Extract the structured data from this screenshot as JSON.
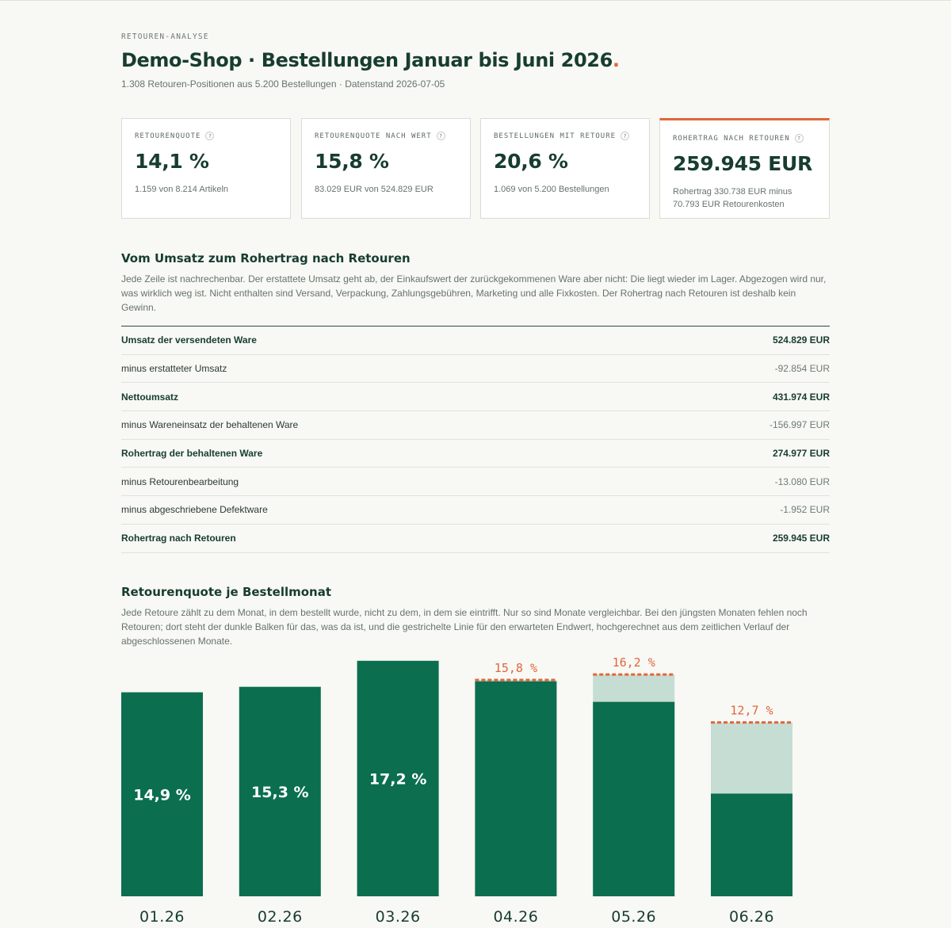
{
  "header": {
    "eyebrow": "RETOUREN-ANALYSE",
    "title": "Demo-Shop · Bestellungen Januar bis Juni 2026",
    "title_dot": ".",
    "subtitle": "1.308 Retouren-Positionen aus 5.200 Bestellungen · Datenstand 2026-07-05"
  },
  "kpis": [
    {
      "label": "RETOURENQUOTE",
      "value": "14,1 %",
      "note": "1.159 von 8.214 Artikeln"
    },
    {
      "label": "RETOURENQUOTE NACH WERT",
      "value": "15,8 %",
      "note": "83.029 EUR von 524.829 EUR"
    },
    {
      "label": "BESTELLUNGEN MIT RETOURE",
      "value": "20,6 %",
      "note": "1.069 von 5.200 Bestellungen"
    },
    {
      "label": "ROHERTRAG NACH RETOUREN",
      "value": "259.945 EUR",
      "note": "Rohertrag 330.738 EUR minus 70.793 EUR Retourenkosten"
    }
  ],
  "help_glyph": "?",
  "bridge": {
    "title": "Vom Umsatz zum Rohertrag nach Retouren",
    "description": "Jede Zeile ist nachrechenbar. Der erstattete Umsatz geht ab, der Einkaufswert der zurückgekommenen Ware aber nicht: Die liegt wieder im Lager. Abgezogen wird nur, was wirklich weg ist. Nicht enthalten sind Versand, Verpackung, Zahlungsgebühren, Marketing und alle Fixkosten. Der Rohertrag nach Retouren ist deshalb kein Gewinn.",
    "rows": [
      {
        "label": "Umsatz der versendeten Ware",
        "value": "524.829 EUR",
        "bold": true
      },
      {
        "label": "minus erstatteter Umsatz",
        "value": "-92.854 EUR",
        "bold": false
      },
      {
        "label": "Nettoumsatz",
        "value": "431.974 EUR",
        "bold": true
      },
      {
        "label": "minus Wareneinsatz der behaltenen Ware",
        "value": "-156.997 EUR",
        "bold": false
      },
      {
        "label": "Rohertrag der behaltenen Ware",
        "value": "274.977 EUR",
        "bold": true
      },
      {
        "label": "minus Retourenbearbeitung",
        "value": "-13.080 EUR",
        "bold": false
      },
      {
        "label": "minus abgeschriebene Defektware",
        "value": "-1.952 EUR",
        "bold": false
      },
      {
        "label": "Rohertrag nach Retouren",
        "value": "259.945 EUR",
        "bold": true
      }
    ]
  },
  "monthly": {
    "title": "Retourenquote je Bestellmonat",
    "description": "Jede Retoure zählt zu dem Monat, in dem bestellt wurde, nicht zu dem, in dem sie eintrifft. Nur so sind Monate vergleichbar. Bei den jüngsten Monaten fehlen noch Retouren; dort steht der dunkle Balken für das, was da ist, und die gestrichelte Linie für den erwarteten Endwert, hochgerechnet aus dem zeitlichen Verlauf der abgeschlossenen Monate."
  },
  "colors": {
    "bar": "#0b6e4f",
    "projection": "#c6ddd3",
    "accent": "#e0673a"
  },
  "chart_data": {
    "type": "bar",
    "categories": [
      "01.26",
      "02.26",
      "03.26",
      "04.26",
      "05.26",
      "06.26"
    ],
    "series": [
      {
        "values": [
          14.9,
          15.3,
          17.2,
          15.7,
          14.2,
          7.5
        ]
      },
      {
        "values": [
          null,
          null,
          null,
          15.8,
          16.2,
          12.7
        ]
      }
    ],
    "bar_labels": [
      "14,9 %",
      "15,3 %",
      "17,2 %",
      "",
      "",
      ""
    ],
    "estimate_labels": [
      "",
      "",
      "",
      "15,8 %",
      "16,2 %",
      "12,7 %"
    ],
    "ylim": [
      0,
      18
    ],
    "grid": false
  }
}
